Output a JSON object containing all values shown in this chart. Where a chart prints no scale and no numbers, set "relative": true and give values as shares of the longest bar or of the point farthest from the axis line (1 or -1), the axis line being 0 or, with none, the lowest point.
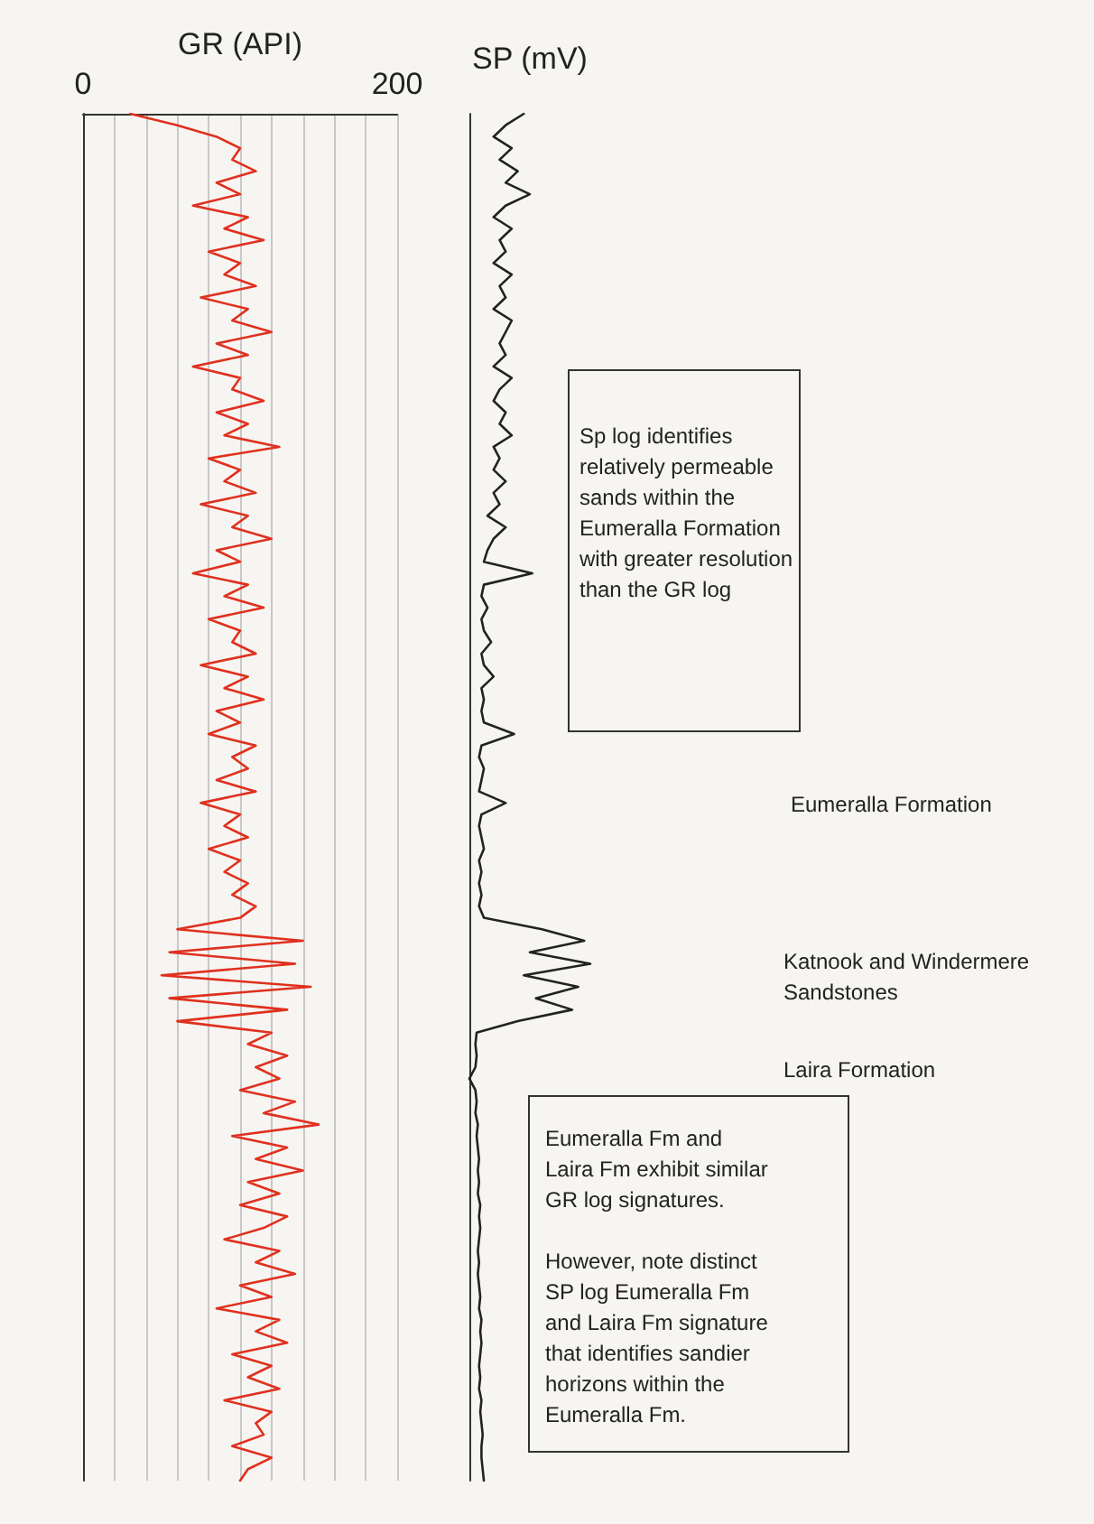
{
  "chart_data": [
    {
      "type": "line",
      "orientation": "horizontal",
      "xlabel": "GR (API)",
      "xlim": [
        0,
        200
      ],
      "xticks": [
        0,
        {
          "value": 20,
          "label": null
        },
        {
          "value": 40,
          "label": null
        },
        {
          "value": 60,
          "label": null
        },
        {
          "value": 80,
          "label": null
        },
        {
          "value": 100,
          "label": null
        },
        {
          "value": 120,
          "label": null
        },
        {
          "value": 140,
          "label": null
        },
        {
          "value": 160,
          "label": null
        },
        {
          "value": 180,
          "label": null
        },
        200
      ],
      "grid": "x",
      "tick_labels": "x",
      "line_style": "solid",
      "categories": [
        null,
        null,
        null,
        null,
        null,
        null,
        null,
        null,
        null,
        null,
        null,
        null,
        null,
        null,
        null,
        null,
        null,
        null,
        null,
        null,
        null,
        null,
        null,
        null,
        null,
        null,
        null,
        null,
        null,
        null,
        null,
        null,
        null,
        null,
        null,
        null,
        null,
        null,
        null,
        null,
        null,
        null,
        null,
        null,
        null,
        null,
        null,
        null,
        null,
        null,
        null,
        null,
        null,
        null,
        null,
        null,
        null,
        null,
        null,
        null,
        null,
        null,
        null,
        null,
        null,
        null,
        null,
        null,
        null,
        null,
        null,
        null,
        null,
        null,
        null,
        null,
        null,
        null,
        null,
        null,
        null,
        null,
        null,
        null,
        null,
        null,
        null,
        null,
        null,
        null,
        null,
        null,
        null,
        null,
        null,
        null,
        null,
        null,
        null,
        null,
        null,
        null,
        null,
        null,
        null,
        null,
        null,
        null,
        null,
        null,
        null,
        null,
        null,
        null,
        null,
        null,
        null,
        null,
        null,
        null
      ],
      "series": [
        {
          "color": "#e0301e",
          "values": [
            30,
            60,
            85,
            100,
            95,
            110,
            85,
            100,
            70,
            105,
            90,
            115,
            80,
            100,
            90,
            110,
            75,
            105,
            95,
            120,
            85,
            105,
            70,
            100,
            95,
            115,
            85,
            105,
            90,
            125,
            80,
            100,
            90,
            110,
            75,
            105,
            95,
            120,
            85,
            100,
            70,
            105,
            90,
            115,
            80,
            100,
            95,
            110,
            75,
            105,
            90,
            115,
            85,
            100,
            80,
            110,
            95,
            105,
            85,
            110,
            75,
            100,
            90,
            105,
            80,
            100,
            90,
            105,
            95,
            110,
            100,
            60,
            140,
            55,
            135,
            50,
            145,
            55,
            130,
            60,
            120,
            105,
            130,
            110,
            125,
            100,
            135,
            115,
            150,
            95,
            130,
            110,
            140,
            105,
            125,
            100,
            130,
            115,
            90,
            125,
            110,
            135,
            100,
            120,
            85,
            125,
            110,
            130,
            95,
            120,
            105,
            125,
            90,
            120,
            110,
            115,
            95,
            120,
            105,
            100
          ]
        }
      ]
    },
    {
      "type": "line",
      "orientation": "horizontal",
      "xlabel": "SP (mV)",
      "relative": true,
      "tick_labels": false,
      "line_style": "solid",
      "categories": [
        null,
        null,
        null,
        null,
        null,
        null,
        null,
        null,
        null,
        null,
        null,
        null,
        null,
        null,
        null,
        null,
        null,
        null,
        null,
        null,
        null,
        null,
        null,
        null,
        null,
        null,
        null,
        null,
        null,
        null,
        null,
        null,
        null,
        null,
        null,
        null,
        null,
        null,
        null,
        null,
        null,
        null,
        null,
        null,
        null,
        null,
        null,
        null,
        null,
        null,
        null,
        null,
        null,
        null,
        null,
        null,
        null,
        null,
        null,
        null,
        null,
        null,
        null,
        null,
        null,
        null,
        null,
        null,
        null,
        null,
        null,
        null,
        null,
        null,
        null,
        null,
        null,
        null,
        null,
        null,
        null,
        null,
        null,
        null,
        null,
        null,
        null,
        null,
        null,
        null,
        null,
        null,
        null,
        null,
        null,
        null,
        null,
        null,
        null,
        null,
        null,
        null,
        null,
        null,
        null,
        null,
        null,
        null,
        null,
        null,
        null,
        null,
        null,
        null,
        null,
        null,
        null,
        null,
        null,
        null
      ],
      "series": [
        {
          "color": "#222222",
          "values": [
            0.45,
            0.3,
            0.2,
            0.35,
            0.25,
            0.4,
            0.3,
            0.5,
            0.3,
            0.2,
            0.35,
            0.25,
            0.3,
            0.2,
            0.35,
            0.25,
            0.3,
            0.2,
            0.35,
            0.3,
            0.25,
            0.3,
            0.2,
            0.35,
            0.25,
            0.2,
            0.3,
            0.25,
            0.35,
            0.2,
            0.25,
            0.2,
            0.3,
            0.2,
            0.25,
            0.15,
            0.3,
            0.2,
            0.15,
            0.12,
            0.52,
            0.12,
            0.1,
            0.15,
            0.1,
            0.12,
            0.18,
            0.1,
            0.12,
            0.2,
            0.1,
            0.12,
            0.1,
            0.12,
            0.37,
            0.1,
            0.08,
            0.12,
            0.1,
            0.08,
            0.3,
            0.1,
            0.08,
            0.1,
            0.12,
            0.08,
            0.1,
            0.08,
            0.1,
            0.08,
            0.12,
            0.6,
            0.95,
            0.5,
            1.0,
            0.45,
            0.9,
            0.55,
            0.85,
            0.4,
            0.06,
            0.05,
            0.06,
            0.05,
            0,
            0.05,
            0.06,
            0.05,
            0.07,
            0.06,
            0.07,
            0.08,
            0.07,
            0.08,
            0.07,
            0.09,
            0.08,
            0.09,
            0.08,
            0.07,
            0.08,
            0.07,
            0.08,
            0.09,
            0.08,
            0.1,
            0.09,
            0.1,
            0.09,
            0.08,
            0.09,
            0.08,
            0.1,
            0.09,
            0.1,
            0.11,
            0.1,
            0.1,
            0.11,
            0.12
          ]
        }
      ],
      "annotations": [
        "Sp log identifies\nrelatively permeable\nsands within the\nEumeralla Formation\nwith greater resolution\nthan the GR log",
        "Eumeralla Formation",
        "Katnook and Windermere\nSandstones",
        "Laira Formation",
        "Eumeralla Fm and\nLaira Fm exhibit similar\nGR log signatures.\n\nHowever, note distinct\nSP log Eumeralla Fm\nand Laira Fm signature\nthat identifies sandier\nhorizons within the\nEumeralla Fm."
      ]
    }
  ]
}
